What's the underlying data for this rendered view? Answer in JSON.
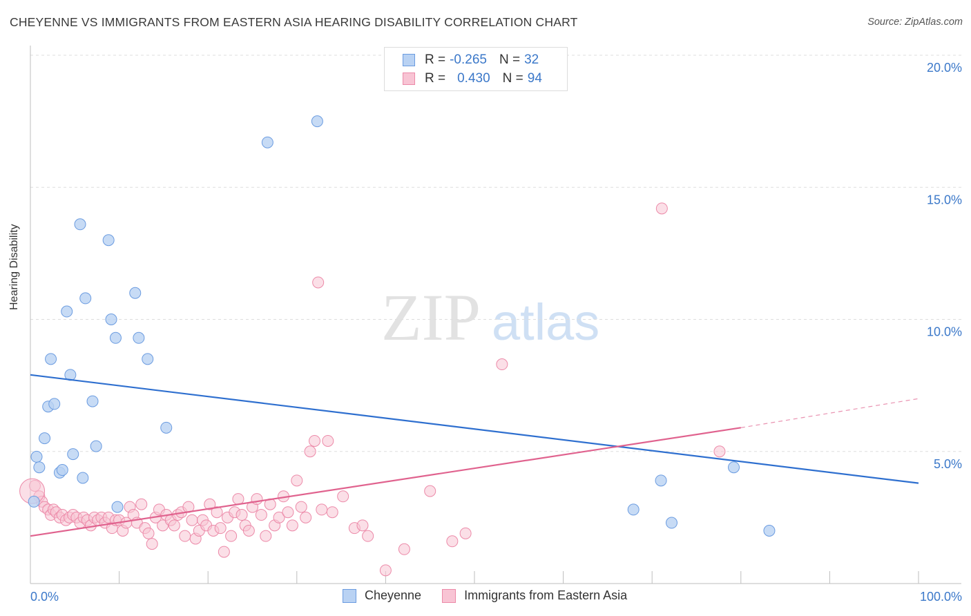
{
  "header": {
    "title": "CHEYENNE VS IMMIGRANTS FROM EASTERN ASIA HEARING DISABILITY CORRELATION CHART",
    "source": "Source: ZipAtlas.com"
  },
  "watermark": {
    "part1": "ZIP",
    "part2": "atlas"
  },
  "legend": {
    "rows": [
      {
        "r_label": "R =",
        "r_value": "-0.265",
        "n_label": "N =",
        "n_value": "32"
      },
      {
        "r_label": "R =",
        "r_value": "0.430",
        "n_label": "N =",
        "n_value": "94"
      }
    ]
  },
  "bottom_legend": {
    "series1": "Cheyenne",
    "series2": "Immigrants from Eastern Asia"
  },
  "colors": {
    "blue_fill": "#b9d2f3",
    "blue_stroke": "#6a9be0",
    "blue_line": "#2e6fcf",
    "pink_fill": "#f8c4d4",
    "pink_stroke": "#ec89a8",
    "pink_line": "#e0628e",
    "axis_text": "#3b78c9",
    "grid": "#dddddd"
  },
  "chart_data": {
    "type": "scatter",
    "title": "CHEYENNE VS IMMIGRANTS FROM EASTERN ASIA HEARING DISABILITY CORRELATION CHART",
    "xlabel": "",
    "ylabel": "Hearing Disability",
    "xlim": [
      0,
      100
    ],
    "ylim": [
      0,
      20
    ],
    "x_tick_labels": [
      "0.0%",
      "100.0%"
    ],
    "y_ticks": [
      5,
      10,
      15,
      20
    ],
    "y_tick_labels": [
      "5.0%",
      "10.0%",
      "15.0%",
      "20.0%"
    ],
    "grid": "horizontal dashed",
    "legend_position": "top-center",
    "series": [
      {
        "name": "Cheyenne",
        "r": -0.265,
        "n": 32,
        "trend": {
          "x": [
            0,
            100
          ],
          "y": [
            7.9,
            3.8
          ]
        },
        "points": [
          [
            0.4,
            3.1
          ],
          [
            0.7,
            4.8
          ],
          [
            1.0,
            4.4
          ],
          [
            1.6,
            5.5
          ],
          [
            2.0,
            6.7
          ],
          [
            2.3,
            8.5
          ],
          [
            2.7,
            6.8
          ],
          [
            3.3,
            4.2
          ],
          [
            3.6,
            4.3
          ],
          [
            4.1,
            10.3
          ],
          [
            4.5,
            7.9
          ],
          [
            4.8,
            4.9
          ],
          [
            5.6,
            13.6
          ],
          [
            5.9,
            4.0
          ],
          [
            6.2,
            10.8
          ],
          [
            7.0,
            6.9
          ],
          [
            7.4,
            5.2
          ],
          [
            8.8,
            13.0
          ],
          [
            9.1,
            10.0
          ],
          [
            9.6,
            9.3
          ],
          [
            9.8,
            2.9
          ],
          [
            11.8,
            11.0
          ],
          [
            12.2,
            9.3
          ],
          [
            13.2,
            8.5
          ],
          [
            15.3,
            5.9
          ],
          [
            26.7,
            16.7
          ],
          [
            32.3,
            17.5
          ],
          [
            67.9,
            2.8
          ],
          [
            71.0,
            3.9
          ],
          [
            72.2,
            2.3
          ],
          [
            79.2,
            4.4
          ],
          [
            83.2,
            2.0
          ]
        ]
      },
      {
        "name": "Immigrants from Eastern Asia",
        "r": 0.43,
        "n": 94,
        "trend": {
          "x": [
            0,
            80
          ],
          "y": [
            1.8,
            5.9
          ]
        },
        "trend_dashed": {
          "x": [
            80,
            100
          ],
          "y": [
            5.9,
            7.0
          ]
        },
        "points": [
          [
            0.5,
            3.7
          ],
          [
            1.0,
            3.3
          ],
          [
            1.3,
            3.1
          ],
          [
            1.6,
            2.9
          ],
          [
            2.0,
            2.8
          ],
          [
            2.3,
            2.6
          ],
          [
            2.6,
            2.8
          ],
          [
            2.9,
            2.7
          ],
          [
            3.3,
            2.5
          ],
          [
            3.6,
            2.6
          ],
          [
            4.0,
            2.4
          ],
          [
            4.4,
            2.5
          ],
          [
            4.8,
            2.6
          ],
          [
            5.2,
            2.5
          ],
          [
            5.6,
            2.3
          ],
          [
            6.0,
            2.5
          ],
          [
            6.4,
            2.4
          ],
          [
            6.8,
            2.2
          ],
          [
            7.2,
            2.5
          ],
          [
            7.6,
            2.4
          ],
          [
            8.0,
            2.5
          ],
          [
            8.4,
            2.3
          ],
          [
            8.8,
            2.5
          ],
          [
            9.2,
            2.1
          ],
          [
            9.6,
            2.4
          ],
          [
            10.0,
            2.4
          ],
          [
            10.4,
            2.0
          ],
          [
            10.8,
            2.3
          ],
          [
            11.2,
            2.9
          ],
          [
            11.6,
            2.6
          ],
          [
            12.0,
            2.3
          ],
          [
            12.5,
            3.0
          ],
          [
            12.9,
            2.1
          ],
          [
            13.3,
            1.9
          ],
          [
            13.7,
            1.5
          ],
          [
            14.1,
            2.5
          ],
          [
            14.5,
            2.8
          ],
          [
            14.9,
            2.2
          ],
          [
            15.3,
            2.6
          ],
          [
            15.8,
            2.4
          ],
          [
            16.2,
            2.2
          ],
          [
            16.6,
            2.6
          ],
          [
            17.0,
            2.7
          ],
          [
            17.4,
            1.8
          ],
          [
            17.8,
            2.9
          ],
          [
            18.2,
            2.4
          ],
          [
            18.6,
            1.7
          ],
          [
            19.0,
            2.0
          ],
          [
            19.4,
            2.4
          ],
          [
            19.8,
            2.2
          ],
          [
            20.2,
            3.0
          ],
          [
            20.6,
            2.0
          ],
          [
            21.0,
            2.7
          ],
          [
            21.4,
            2.1
          ],
          [
            21.8,
            1.2
          ],
          [
            22.2,
            2.5
          ],
          [
            22.6,
            1.8
          ],
          [
            23.0,
            2.7
          ],
          [
            23.4,
            3.2
          ],
          [
            23.8,
            2.6
          ],
          [
            24.2,
            2.2
          ],
          [
            24.6,
            2.0
          ],
          [
            25.0,
            2.9
          ],
          [
            25.5,
            3.2
          ],
          [
            26.0,
            2.6
          ],
          [
            26.5,
            1.8
          ],
          [
            27.0,
            3.0
          ],
          [
            27.5,
            2.2
          ],
          [
            28.0,
            2.5
          ],
          [
            28.5,
            3.3
          ],
          [
            29.0,
            2.7
          ],
          [
            29.5,
            2.2
          ],
          [
            30.0,
            3.9
          ],
          [
            30.5,
            2.9
          ],
          [
            31.0,
            2.5
          ],
          [
            31.5,
            5.0
          ],
          [
            32.0,
            5.4
          ],
          [
            32.4,
            11.4
          ],
          [
            32.8,
            2.8
          ],
          [
            33.5,
            5.4
          ],
          [
            34.0,
            2.7
          ],
          [
            35.2,
            3.3
          ],
          [
            36.5,
            2.1
          ],
          [
            37.4,
            2.2
          ],
          [
            38.0,
            1.8
          ],
          [
            40.0,
            0.5
          ],
          [
            42.1,
            1.3
          ],
          [
            45.0,
            3.5
          ],
          [
            47.5,
            1.6
          ],
          [
            49.0,
            1.9
          ],
          [
            53.1,
            8.3
          ],
          [
            71.1,
            14.2
          ],
          [
            77.6,
            5.0
          ],
          [
            0.2,
            3.5
          ]
        ]
      }
    ]
  }
}
